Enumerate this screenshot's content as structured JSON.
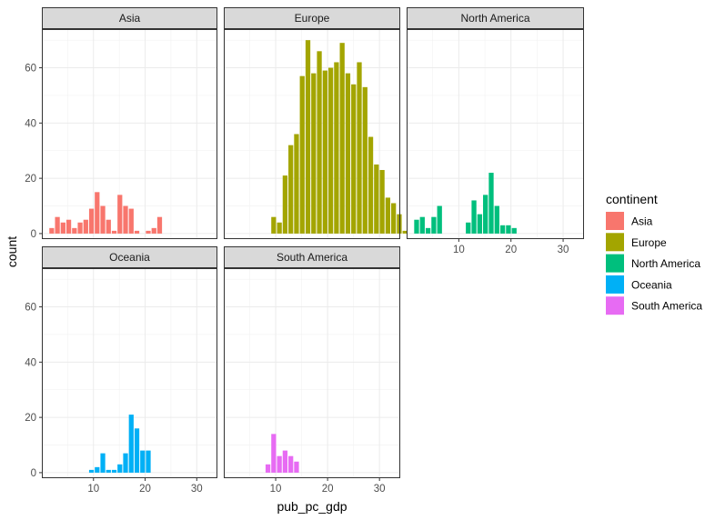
{
  "chart_data": {
    "type": "bar",
    "subtype": "faceted-histogram",
    "xlabel": "pub_pc_gdp",
    "ylabel": "count",
    "xlim": [
      0,
      34
    ],
    "ylim": [
      -2,
      74
    ],
    "x_ticks": [
      10,
      20,
      30
    ],
    "y_ticks": [
      0,
      20,
      40,
      60
    ],
    "bin_width": 1.1,
    "grid": true,
    "theme": "bw",
    "legend": {
      "title": "continent",
      "placement": "right",
      "items": [
        {
          "label": "Asia",
          "color": "#F8766D"
        },
        {
          "label": "Europe",
          "color": "#A3A500"
        },
        {
          "label": "North America",
          "color": "#00BF7D"
        },
        {
          "label": "Oceania",
          "color": "#00B0F6"
        },
        {
          "label": "South America",
          "color": "#E76BF3"
        }
      ]
    },
    "facets": [
      {
        "name": "Asia",
        "color": "#F8766D",
        "bins": [
          {
            "x": 2.0,
            "count": 2
          },
          {
            "x": 3.1,
            "count": 6
          },
          {
            "x": 4.2,
            "count": 4
          },
          {
            "x": 5.3,
            "count": 5
          },
          {
            "x": 6.4,
            "count": 2
          },
          {
            "x": 7.5,
            "count": 4
          },
          {
            "x": 8.6,
            "count": 5
          },
          {
            "x": 9.7,
            "count": 9
          },
          {
            "x": 10.8,
            "count": 15
          },
          {
            "x": 11.9,
            "count": 10
          },
          {
            "x": 13.0,
            "count": 5
          },
          {
            "x": 14.1,
            "count": 1
          },
          {
            "x": 15.2,
            "count": 14
          },
          {
            "x": 16.3,
            "count": 10
          },
          {
            "x": 17.4,
            "count": 9
          },
          {
            "x": 18.5,
            "count": 1
          },
          {
            "x": 20.7,
            "count": 1
          },
          {
            "x": 21.8,
            "count": 2
          },
          {
            "x": 22.9,
            "count": 6
          }
        ]
      },
      {
        "name": "Europe",
        "color": "#A3A500",
        "bins": [
          {
            "x": 9.7,
            "count": 6
          },
          {
            "x": 10.8,
            "count": 4
          },
          {
            "x": 11.9,
            "count": 21
          },
          {
            "x": 13.0,
            "count": 32
          },
          {
            "x": 14.1,
            "count": 36
          },
          {
            "x": 15.2,
            "count": 57
          },
          {
            "x": 16.3,
            "count": 70
          },
          {
            "x": 17.4,
            "count": 58
          },
          {
            "x": 18.5,
            "count": 66
          },
          {
            "x": 19.6,
            "count": 59
          },
          {
            "x": 20.7,
            "count": 60
          },
          {
            "x": 21.8,
            "count": 62
          },
          {
            "x": 22.9,
            "count": 69
          },
          {
            "x": 24.0,
            "count": 58
          },
          {
            "x": 25.1,
            "count": 54
          },
          {
            "x": 26.2,
            "count": 62
          },
          {
            "x": 27.3,
            "count": 53
          },
          {
            "x": 28.4,
            "count": 35
          },
          {
            "x": 29.5,
            "count": 25
          },
          {
            "x": 30.6,
            "count": 23
          },
          {
            "x": 31.7,
            "count": 13
          },
          {
            "x": 32.8,
            "count": 11
          },
          {
            "x": 33.9,
            "count": 7
          },
          {
            "x": 35.0,
            "count": 1
          }
        ]
      },
      {
        "name": "North America",
        "color": "#00BF7D",
        "bins": [
          {
            "x": 2.0,
            "count": 5
          },
          {
            "x": 3.1,
            "count": 6
          },
          {
            "x": 4.2,
            "count": 2
          },
          {
            "x": 5.3,
            "count": 6
          },
          {
            "x": 6.4,
            "count": 10
          },
          {
            "x": 11.9,
            "count": 4
          },
          {
            "x": 13.0,
            "count": 12
          },
          {
            "x": 14.1,
            "count": 7
          },
          {
            "x": 15.2,
            "count": 14
          },
          {
            "x": 16.3,
            "count": 22
          },
          {
            "x": 17.4,
            "count": 10
          },
          {
            "x": 18.5,
            "count": 3
          },
          {
            "x": 19.6,
            "count": 3
          },
          {
            "x": 20.7,
            "count": 2
          }
        ]
      },
      {
        "name": "Oceania",
        "color": "#00B0F6",
        "bins": [
          {
            "x": 9.7,
            "count": 1
          },
          {
            "x": 10.8,
            "count": 2
          },
          {
            "x": 11.9,
            "count": 7
          },
          {
            "x": 13.0,
            "count": 1
          },
          {
            "x": 14.1,
            "count": 1
          },
          {
            "x": 15.2,
            "count": 3
          },
          {
            "x": 16.3,
            "count": 7
          },
          {
            "x": 17.4,
            "count": 21
          },
          {
            "x": 18.5,
            "count": 16
          },
          {
            "x": 19.6,
            "count": 8
          },
          {
            "x": 20.7,
            "count": 8
          }
        ]
      },
      {
        "name": "South America",
        "color": "#E76BF3",
        "bins": [
          {
            "x": 8.6,
            "count": 3
          },
          {
            "x": 9.7,
            "count": 14
          },
          {
            "x": 10.8,
            "count": 6
          },
          {
            "x": 11.9,
            "count": 8
          },
          {
            "x": 13.0,
            "count": 6
          },
          {
            "x": 14.1,
            "count": 4
          }
        ]
      }
    ]
  }
}
